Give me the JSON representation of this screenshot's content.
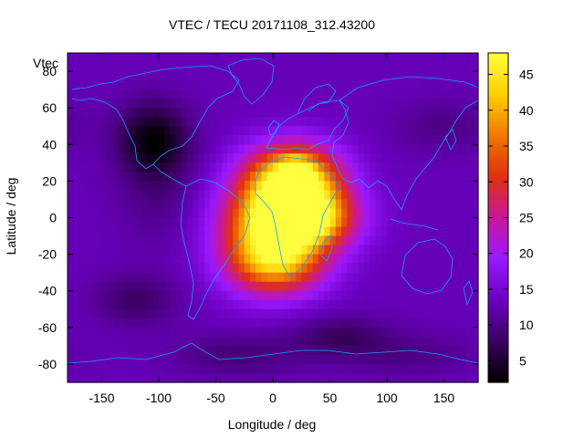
{
  "chart_data": {
    "type": "heatmap",
    "title": "VTEC / TECU 20171108_312.43200",
    "xlabel": "Longitude / deg",
    "ylabel": "Latitude / deg",
    "corner_label": "Vtec",
    "xlim": [
      -180,
      180
    ],
    "ylim": [
      -90,
      90
    ],
    "x_ticks": [
      -150,
      -100,
      -50,
      0,
      50,
      100,
      150
    ],
    "y_ticks": [
      -80,
      -60,
      -40,
      -20,
      0,
      20,
      40,
      60,
      80
    ],
    "colorbar": {
      "range": [
        2,
        48
      ],
      "ticks": [
        5,
        10,
        15,
        20,
        25,
        30,
        35,
        40,
        45
      ],
      "palette": [
        "#000000",
        "#3a0060",
        "#6a00c0",
        "#9a18ff",
        "#c8189a",
        "#e03010",
        "#f07800",
        "#ffd000",
        "#ffff40"
      ]
    },
    "coastline_color": "#1a9cff",
    "background_vtec": 13,
    "features": [
      {
        "lon": 20,
        "lat": 22,
        "vtec": 30,
        "sigma_lon": 28,
        "sigma_lat": 13
      },
      {
        "lon": 30,
        "lat": 0,
        "vtec": 29,
        "sigma_lon": 30,
        "sigma_lat": 12
      },
      {
        "lon": -5,
        "lat": -5,
        "vtec": 24,
        "sigma_lon": 30,
        "sigma_lat": 20
      },
      {
        "lon": 5,
        "lat": -25,
        "vtec": 18,
        "sigma_lon": 30,
        "sigma_lat": 12
      },
      {
        "lon": 20,
        "lat": 25,
        "vtec": 12,
        "sigma_lon": 9,
        "sigma_lat": 5
      },
      {
        "lon": 30,
        "lat": -1,
        "vtec": 13,
        "sigma_lon": 12,
        "sigma_lat": 5
      },
      {
        "lon": -105,
        "lat": 43,
        "vtec": -10,
        "sigma_lon": 22,
        "sigma_lat": 14
      },
      {
        "lon": -100,
        "lat": 15,
        "vtec": -3,
        "sigma_lon": 25,
        "sigma_lat": 20
      },
      {
        "lon": -120,
        "lat": -45,
        "vtec": -5,
        "sigma_lon": 25,
        "sigma_lat": 10
      },
      {
        "lon": 60,
        "lat": -65,
        "vtec": -5,
        "sigma_lon": 30,
        "sigma_lat": 8
      },
      {
        "lon": -30,
        "lat": -75,
        "vtec": -4,
        "sigma_lon": 40,
        "sigma_lat": 8
      },
      {
        "lon": 150,
        "lat": 50,
        "vtec": -3,
        "sigma_lon": 30,
        "sigma_lat": 10
      },
      {
        "lon": 120,
        "lat": -75,
        "vtec": -3,
        "sigma_lon": 40,
        "sigma_lat": 8
      }
    ]
  }
}
